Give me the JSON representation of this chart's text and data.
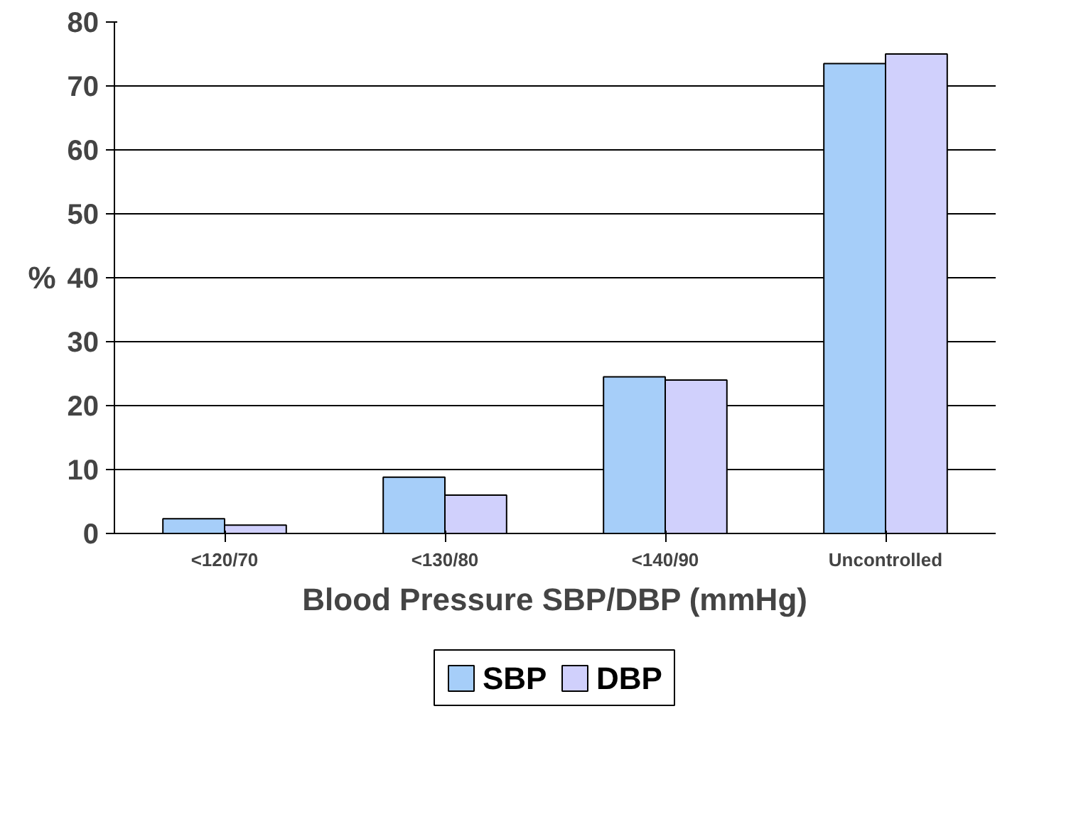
{
  "chart_data": {
    "type": "bar",
    "xlabel": "Blood Pressure SBP/DBP (mmHg)",
    "ylabel": "%",
    "categories": [
      "<120/70",
      "<130/80",
      "<140/90",
      "Uncontrolled"
    ],
    "series": [
      {
        "name": "SBP",
        "color": "#a6cef9",
        "values": [
          2.3,
          8.8,
          24.5,
          73.5
        ]
      },
      {
        "name": "DBP",
        "color": "#d0d0fc",
        "values": [
          1.3,
          6,
          24,
          75
        ]
      }
    ],
    "ylim": [
      0,
      80
    ],
    "yticks": [
      0,
      10,
      20,
      30,
      40,
      50,
      60,
      70,
      80
    ],
    "grid": "y",
    "legend": "bottom"
  }
}
